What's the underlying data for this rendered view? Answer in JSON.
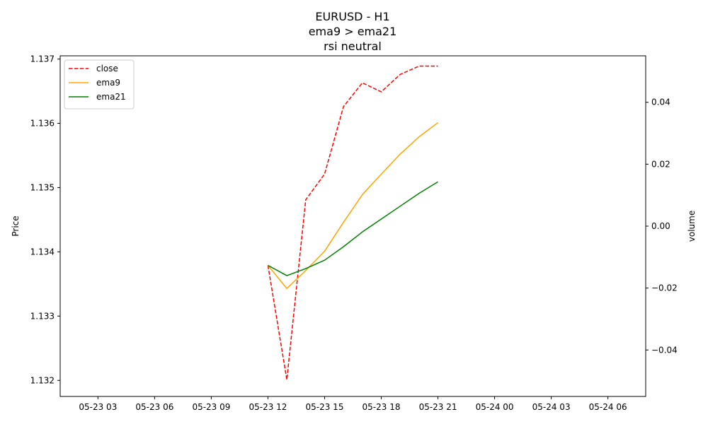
{
  "chart_data": {
    "type": "line",
    "title_lines": [
      "EURUSD - H1",
      "ema9 > ema21",
      "rsi neutral"
    ],
    "ylabel": "Price",
    "y2label": "volume",
    "x": [
      "2025-05-23 12:00",
      "2025-05-23 13:00",
      "2025-05-23 14:00",
      "2025-05-23 15:00",
      "2025-05-23 16:00",
      "2025-05-23 17:00",
      "2025-05-23 18:00",
      "2025-05-23 19:00",
      "2025-05-23 20:00",
      "2025-05-23 21:00"
    ],
    "xlim": [
      "2025-05-23 01:00",
      "2025-05-24 08:00"
    ],
    "x_ticks": [
      "2025-05-23 03:00",
      "2025-05-23 06:00",
      "2025-05-23 09:00",
      "2025-05-23 12:00",
      "2025-05-23 15:00",
      "2025-05-23 18:00",
      "2025-05-23 21:00",
      "2025-05-24 00:00",
      "2025-05-24 03:00",
      "2025-05-24 06:00"
    ],
    "x_tick_labels": [
      "05-23 03",
      "05-23 06",
      "05-23 09",
      "05-23 12",
      "05-23 15",
      "05-23 18",
      "05-23 21",
      "05-24 00",
      "05-24 03",
      "05-24 06"
    ],
    "ylim": [
      1.13175,
      1.13705
    ],
    "y_ticks": [
      1.132,
      1.133,
      1.134,
      1.135,
      1.136,
      1.137
    ],
    "y_tick_labels": [
      "1.132",
      "1.133",
      "1.134",
      "1.135",
      "1.136",
      "1.137"
    ],
    "y2lim": [
      -0.055,
      0.055
    ],
    "y2_ticks": [
      -0.04,
      -0.02,
      0.0,
      0.02,
      0.04
    ],
    "y2_tick_labels": [
      "−0.04",
      "−0.02",
      "0.00",
      "0.02",
      "0.04"
    ],
    "legend_position": "top-left",
    "grid": false,
    "series": [
      {
        "name": "close",
        "color": "#ff0000",
        "style": "dashed",
        "values": [
          1.13379,
          1.13201,
          1.13481,
          1.13521,
          1.13626,
          1.13663,
          1.13649,
          1.13676,
          1.13689,
          1.13689
        ]
      },
      {
        "name": "ema9",
        "color": "#ffa500",
        "style": "solid",
        "values": [
          1.13379,
          1.13343,
          1.13371,
          1.13401,
          1.13446,
          1.13489,
          1.13521,
          1.13552,
          1.13579,
          1.13601
        ]
      },
      {
        "name": "ema21",
        "color": "#008000",
        "style": "solid",
        "values": [
          1.13379,
          1.13363,
          1.13374,
          1.13387,
          1.13408,
          1.13431,
          1.13451,
          1.13471,
          1.13491,
          1.13509
        ]
      }
    ]
  }
}
